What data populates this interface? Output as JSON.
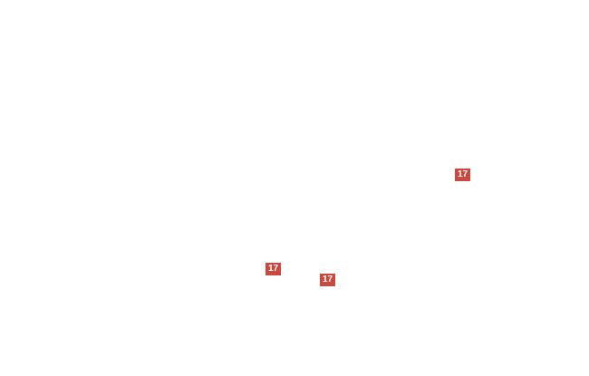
{
  "canvas": {
    "background_color": "#ffffff"
  },
  "diagram": {
    "badge_color": "#c9483f",
    "badge_text_color": "#ffffff",
    "callouts": [
      {
        "label": "17"
      },
      {
        "label": "17"
      },
      {
        "label": "17"
      }
    ]
  }
}
